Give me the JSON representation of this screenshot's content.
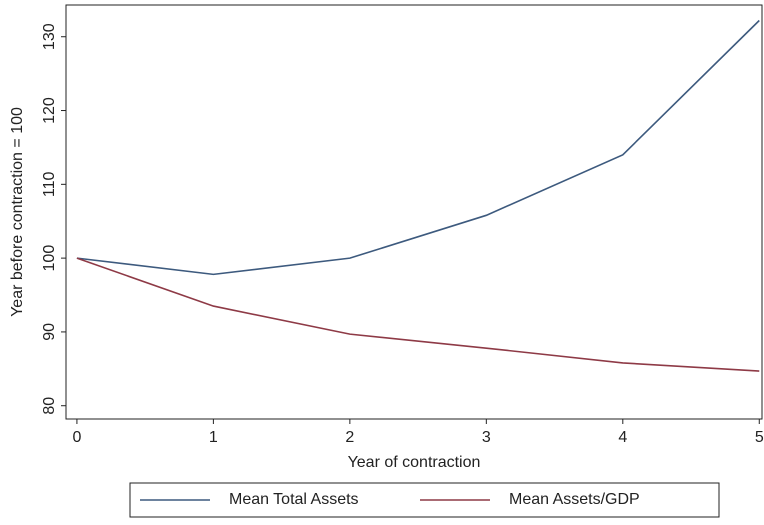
{
  "chart_data": {
    "type": "line",
    "x_label": "Year of contraction",
    "y_label": "Year before contraction = 100",
    "x": [
      0,
      1,
      2,
      3,
      4,
      5
    ],
    "series": [
      {
        "name": "Mean Total Assets",
        "color": "#3d5a7e",
        "values": [
          100,
          97.8,
          100,
          105.8,
          114,
          132.2
        ]
      },
      {
        "name": "Mean Assets/GDP",
        "color": "#8e3a46",
        "values": [
          100,
          93.5,
          89.7,
          87.8,
          85.8,
          84.7
        ]
      }
    ],
    "xlim": [
      -0.08,
      5.02
    ],
    "xticks": [
      0,
      1,
      2,
      3,
      4,
      5
    ],
    "ylim": [
      78.2,
      134.3
    ],
    "yticks": [
      80,
      90,
      100,
      110,
      120,
      130
    ],
    "legend": "bottom"
  }
}
